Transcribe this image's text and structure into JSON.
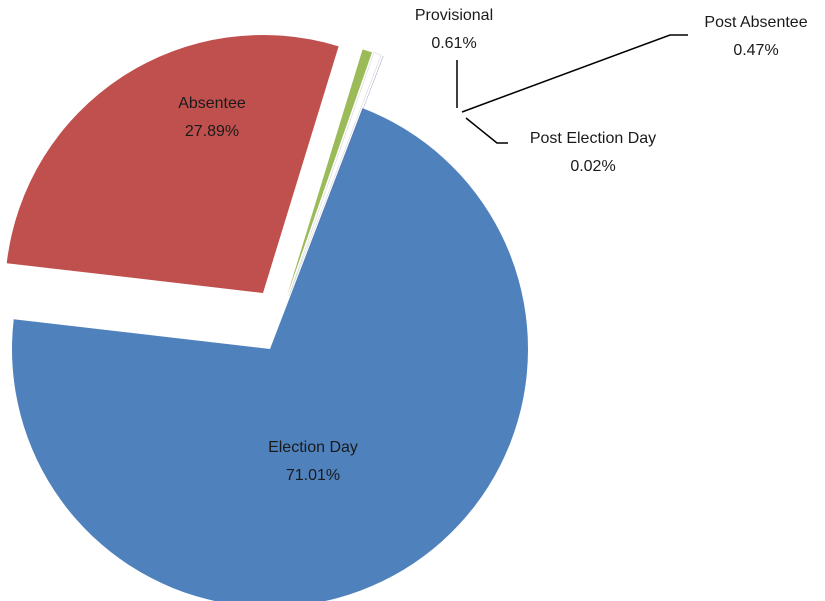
{
  "chart_data": {
    "type": "pie",
    "title": "",
    "categories": [
      "Election Day",
      "Absentee",
      "Provisional",
      "Post Absentee",
      "Post Election Day"
    ],
    "values": [
      71.01,
      27.89,
      0.61,
      0.47,
      0.02
    ],
    "value_labels": [
      "71.01%",
      "27.89%",
      "0.61%",
      "0.47%",
      "0.02%"
    ],
    "unit": "%",
    "colors": [
      "#4f81bd",
      "#c0504d",
      "#9bbb59",
      "#ffffff",
      "#8064a2"
    ],
    "exploded": true,
    "legend": "none"
  }
}
